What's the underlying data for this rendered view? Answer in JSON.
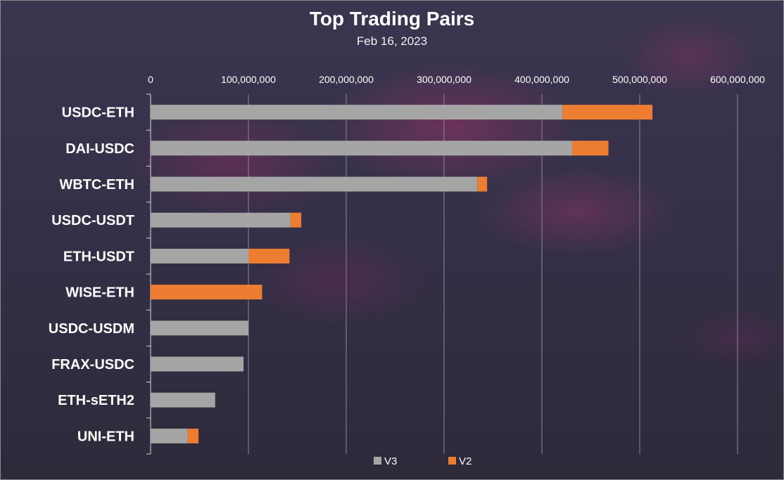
{
  "chart_data": {
    "type": "bar",
    "orientation": "horizontal",
    "stacked": true,
    "title": "Top Trading Pairs",
    "subtitle": "Feb 16, 2023",
    "categories": [
      "USDC-ETH",
      "DAI-USDC",
      "WBTC-ETH",
      "USDC-USDT",
      "ETH-USDT",
      "WISE-ETH",
      "USDC-USDM",
      "FRAX-USDC",
      "ETH-sETH2",
      "UNI-ETH"
    ],
    "series": [
      {
        "name": "V3",
        "color": "#a5a5a5",
        "values": [
          421000000,
          431000000,
          334000000,
          143000000,
          100000000,
          0,
          100000000,
          95000000,
          66000000,
          38000000
        ]
      },
      {
        "name": "V2",
        "color": "#ed7d31",
        "values": [
          92000000,
          37000000,
          10000000,
          11000000,
          42000000,
          114000000,
          0,
          0,
          0,
          11000000
        ]
      }
    ],
    "xlim": [
      0,
      600000000
    ],
    "x_ticks": [
      0,
      100000000,
      200000000,
      300000000,
      400000000,
      500000000,
      600000000
    ],
    "x_tick_labels": [
      "0",
      "100,000,000",
      "200,000,000",
      "300,000,000",
      "400,000,000",
      "500,000,000",
      "600,000,000"
    ],
    "x_axis_position": "top",
    "grid": true,
    "legend_position": "bottom"
  }
}
